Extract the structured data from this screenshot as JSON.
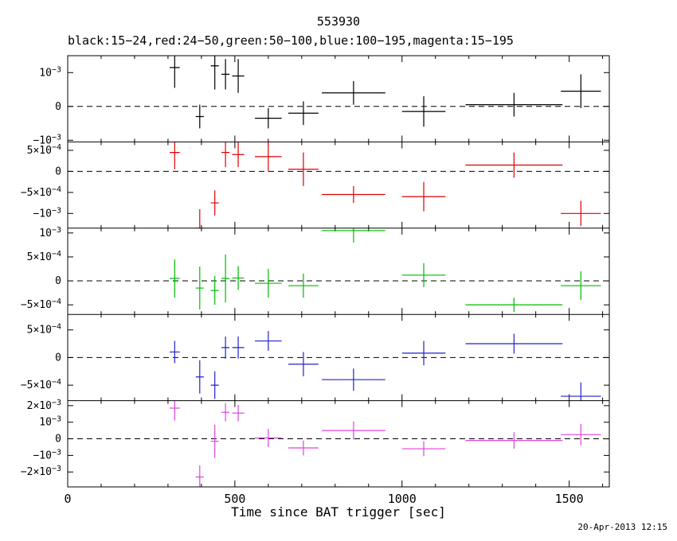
{
  "footer": {
    "timestamp": "20-Apr-2013 12:15"
  },
  "chart_data": {
    "type": "scatter",
    "title": "553930",
    "subtitle": "black:15−24,red:24−50,green:50−100,blue:100−195,magenta:15−195",
    "xlabel": "Time since BAT trigger [sec]",
    "grid": false,
    "legend_position": "subtitle-line",
    "xlim": [
      0,
      1620
    ],
    "x_major_ticks": [
      0,
      500,
      1000,
      1500
    ],
    "x_minor_step": 100,
    "x": [
      320,
      395,
      440,
      472,
      510,
      600,
      705,
      855,
      1065,
      1335,
      1535
    ],
    "x_halfwidth": [
      15,
      12,
      12,
      12,
      18,
      40,
      45,
      95,
      65,
      145,
      60
    ],
    "panels": [
      {
        "name": "black",
        "energy_band": "15-24 keV",
        "color": "#000000",
        "ylim": [
          -0.00105,
          0.0015
        ],
        "yticks": [
          {
            "v": 0.001,
            "label": "10^−3"
          },
          {
            "v": 0,
            "label": "0"
          },
          {
            "v": -0.001,
            "label": "−10^−3"
          }
        ],
        "y": [
          0.00115,
          -0.0003,
          0.0012,
          0.00095,
          0.0009,
          -0.00035,
          -0.0002,
          0.0004,
          -0.00015,
          5e-05,
          0.00045
        ],
        "yerr": [
          0.0006,
          0.00035,
          0.0007,
          0.00045,
          0.0005,
          0.0003,
          0.00035,
          0.00035,
          0.00045,
          0.00035,
          0.0005
        ]
      },
      {
        "name": "red",
        "energy_band": "24-50 keV",
        "color": "#dd0000",
        "ylim": [
          -0.00135,
          0.0007
        ],
        "yticks": [
          {
            "v": 0.0005,
            "label": "5×10^−4"
          },
          {
            "v": 0,
            "label": "0"
          },
          {
            "v": -0.0005,
            "label": "−5×10^−4"
          },
          {
            "v": -0.001,
            "label": "−10^−3"
          }
        ],
        "y": [
          0.00045,
          -0.00135,
          -0.00075,
          0.00045,
          0.0004,
          0.00035,
          5e-05,
          -0.00055,
          -0.0006,
          0.00015,
          -0.001
        ],
        "yerr": [
          0.0004,
          0.00045,
          0.0003,
          0.00035,
          0.0003,
          0.00035,
          0.0004,
          0.0002,
          0.00035,
          0.0003,
          0.0003
        ]
      },
      {
        "name": "green",
        "energy_band": "50-100 keV",
        "color": "#00bb00",
        "ylim": [
          -0.0007,
          0.0011
        ],
        "yticks": [
          {
            "v": 0.001,
            "label": "10^−3"
          },
          {
            "v": 0.0005,
            "label": "5×10^−4"
          },
          {
            "v": 0,
            "label": "0"
          },
          {
            "v": -0.0005,
            "label": "−5×10^−4"
          }
        ],
        "y": [
          5e-05,
          -0.00015,
          -0.0002,
          5e-05,
          6e-05,
          -5e-05,
          -0.0001,
          0.00105,
          0.00012,
          -0.0005,
          -0.0001
        ],
        "yerr": [
          0.0004,
          0.00045,
          0.0003,
          0.0005,
          0.00025,
          0.0003,
          0.00025,
          0.00025,
          0.00025,
          0.00015,
          0.0003
        ]
      },
      {
        "name": "blue",
        "energy_band": "100-195 keV",
        "color": "#2222cc",
        "ylim": [
          -0.00078,
          0.00078
        ],
        "yticks": [
          {
            "v": 0.0005,
            "label": "5×10^−4"
          },
          {
            "v": 0,
            "label": "0"
          },
          {
            "v": -0.0005,
            "label": "−5×10^−4"
          }
        ],
        "y": [
          0.0001,
          -0.00035,
          -0.0005,
          0.00018,
          0.00018,
          0.0003,
          -0.00012,
          -0.0004,
          8e-05,
          0.00025,
          -0.0007
        ],
        "yerr": [
          0.0002,
          0.0003,
          0.00025,
          0.0002,
          0.0002,
          0.00018,
          0.00022,
          0.0002,
          0.00022,
          0.00018,
          0.00025
        ]
      },
      {
        "name": "magenta",
        "energy_band": "15-195 keV",
        "color": "#dd44dd",
        "ylim": [
          -0.0029,
          0.0023
        ],
        "yticks": [
          {
            "v": 0.002,
            "label": "2×10^−3"
          },
          {
            "v": 0.001,
            "label": "10^−3"
          },
          {
            "v": 0,
            "label": "0"
          },
          {
            "v": -0.001,
            "label": "−10^−3"
          },
          {
            "v": -0.002,
            "label": "−2×10^−3"
          }
        ],
        "y": [
          0.00185,
          -0.0023,
          -0.00015,
          0.0016,
          0.00155,
          5e-05,
          -0.00055,
          0.0005,
          -0.0006,
          -0.0001,
          0.00025
        ],
        "yerr": [
          0.00075,
          0.0007,
          0.001,
          0.00055,
          0.0005,
          0.00055,
          0.00045,
          0.00055,
          0.00045,
          0.0005,
          0.00065
        ]
      }
    ]
  }
}
